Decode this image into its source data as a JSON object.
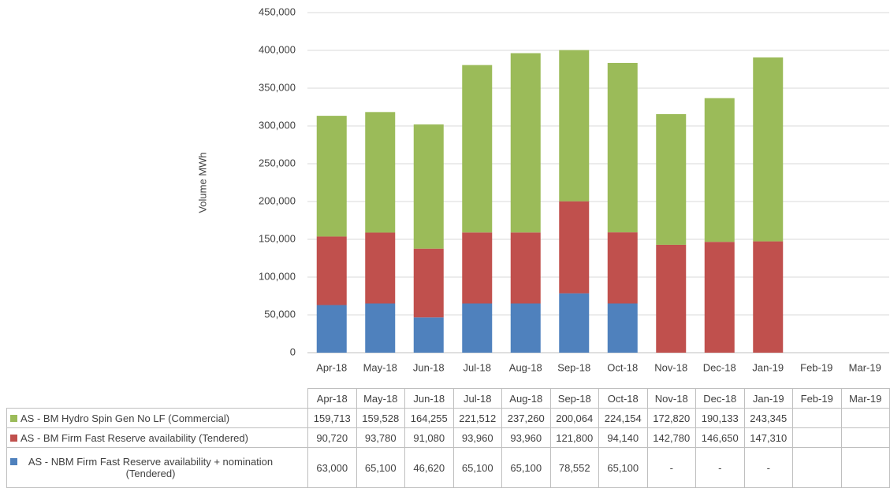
{
  "chart_data": {
    "type": "stacked-bar",
    "y_label": "Volume MWh",
    "categories": [
      "Apr-18",
      "May-18",
      "Jun-18",
      "Jul-18",
      "Aug-18",
      "Sep-18",
      "Oct-18",
      "Nov-18",
      "Dec-18",
      "Jan-19",
      "Feb-19",
      "Mar-19"
    ],
    "series": [
      {
        "name": "AS - BM Hydro Spin Gen No LF (Commercial)",
        "color": "#9bbb59",
        "values": [
          159713,
          159528,
          164255,
          221512,
          237260,
          200064,
          224154,
          172820,
          190133,
          243345,
          null,
          null
        ],
        "value_labels": [
          "159,713",
          "159,528",
          "164,255",
          "221,512",
          "237,260",
          "200,064",
          "224,154",
          "172,820",
          "190,133",
          "243,345",
          null,
          null
        ]
      },
      {
        "name": "AS - BM Firm Fast Reserve availability (Tendered)",
        "color": "#c0504d",
        "values": [
          90720,
          93780,
          91080,
          93960,
          93960,
          121800,
          94140,
          142780,
          146650,
          147310,
          null,
          null
        ],
        "value_labels": [
          "90,720",
          "93,780",
          "91,080",
          "93,960",
          "93,960",
          "121,800",
          "94,140",
          "142,780",
          "146,650",
          "147,310",
          null,
          null
        ]
      },
      {
        "name": "AS - NBM Firm Fast Reserve availability + nomination (Tendered)",
        "color": "#4f81bd",
        "values": [
          63000,
          65100,
          46620,
          65100,
          65100,
          78552,
          65100,
          null,
          null,
          null,
          null,
          null
        ],
        "value_labels": [
          "63,000",
          "65,100",
          "46,620",
          "65,100",
          "65,100",
          "78,552",
          "65,100",
          "-",
          "-",
          "-",
          null,
          null
        ]
      }
    ],
    "ylim": [
      0,
      450000
    ],
    "yticks": [
      0,
      {
        "value": 50000,
        "label": "50,000"
      },
      {
        "value": 100000,
        "label": "100,000"
      },
      {
        "value": 150000,
        "label": "150,000"
      },
      {
        "value": 200000,
        "label": "200,000"
      },
      {
        "value": 250000,
        "label": "250,000"
      },
      {
        "value": 300000,
        "label": "300,000"
      },
      {
        "value": 350000,
        "label": "350,000"
      },
      {
        "value": 400000,
        "label": "400,000"
      },
      {
        "value": 450000,
        "label": "450,000"
      }
    ],
    "grid": true
  }
}
